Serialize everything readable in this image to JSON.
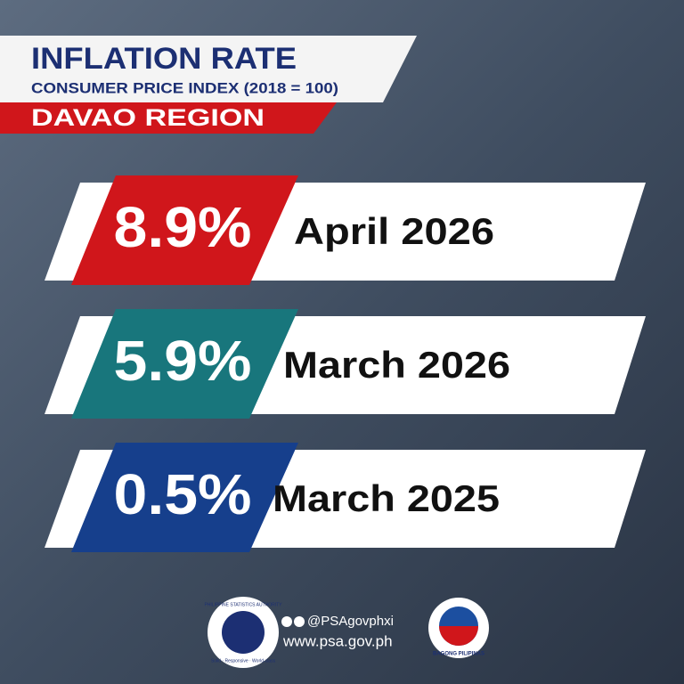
{
  "header": {
    "title": "INFLATION RATE",
    "subtitle": "CONSUMER PRICE INDEX (2018 = 100)",
    "region": "DAVAO REGION"
  },
  "rows": [
    {
      "rate": "8.9%",
      "period": "April 2026",
      "color": "#d0161b"
    },
    {
      "rate": "5.9%",
      "period": "March 2026",
      "color": "#18767c"
    },
    {
      "rate": "0.5%",
      "period": "March 2025",
      "color": "#163f8c"
    }
  ],
  "footer": {
    "psa_logo": "PHILIPPINE STATISTICS AUTHORITY",
    "psa_motto": "Solid · Responsive · World-class",
    "social": "@PSAgovphxi",
    "website": "www.psa.gov.ph",
    "bagong_pilipinas": "BAGONG PILIPINAS"
  }
}
